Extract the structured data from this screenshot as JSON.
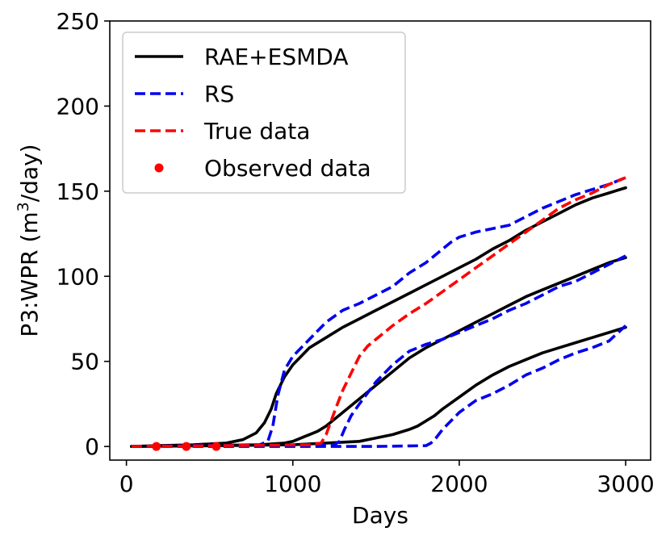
{
  "chart_data": {
    "type": "line",
    "title": "",
    "xlabel": "Days",
    "ylabel": "P3:WPR (m3/day)",
    "ylabel_main": "P3:WPR (m",
    "ylabel_sup": "3",
    "ylabel_tail": "/day)",
    "xlim": [
      -100,
      3150
    ],
    "ylim": [
      -8,
      250
    ],
    "xticks": [
      0,
      1000,
      2000,
      3000
    ],
    "xtick_labels": [
      "0",
      "1000",
      "2000",
      "3000"
    ],
    "yticks": [
      0,
      50,
      100,
      150,
      200,
      250
    ],
    "ytick_labels": [
      "0",
      "50",
      "100",
      "150",
      "200",
      "250"
    ],
    "grid": false,
    "legend_position": "top-left",
    "series": [
      {
        "name": "RAE+ESMDA",
        "legend": true,
        "style": "solid",
        "color": "#000000",
        "x": [
          30,
          200,
          400,
          600,
          700,
          780,
          830,
          870,
          900,
          950,
          1000,
          1050,
          1100,
          1200,
          1300,
          1400,
          1500,
          1600,
          1700,
          1800,
          1900,
          2000,
          2100,
          2200,
          2300,
          2400,
          2500,
          2600,
          2700,
          2800,
          2900,
          3000
        ],
        "y": [
          0,
          0.5,
          1,
          2,
          4,
          8,
          14,
          22,
          31,
          41,
          48,
          53,
          58,
          64,
          70,
          75,
          80,
          85,
          90,
          95,
          100,
          105,
          110,
          116,
          121,
          127,
          132,
          137,
          142,
          146,
          149,
          152
        ]
      },
      {
        "name": "RAE+ESMDA",
        "legend": false,
        "style": "solid",
        "color": "#000000",
        "x": [
          30,
          400,
          800,
          950,
          1000,
          1050,
          1100,
          1150,
          1200,
          1250,
          1300,
          1400,
          1500,
          1600,
          1700,
          1800,
          1900,
          2000,
          2100,
          2200,
          2300,
          2400,
          2500,
          2600,
          2700,
          2800,
          2900,
          3000
        ],
        "y": [
          0,
          0.5,
          1,
          2,
          3,
          5,
          7,
          9,
          12,
          16,
          20,
          28,
          36,
          44,
          52,
          58,
          63,
          68,
          73,
          78,
          83,
          88,
          92,
          96,
          100,
          104,
          108,
          111
        ]
      },
      {
        "name": "RAE+ESMDA",
        "legend": false,
        "style": "solid",
        "color": "#000000",
        "x": [
          30,
          600,
          1000,
          1200,
          1400,
          1500,
          1600,
          1700,
          1750,
          1800,
          1850,
          1900,
          2000,
          2100,
          2200,
          2300,
          2400,
          2500,
          2600,
          2700,
          2800,
          2900,
          3000
        ],
        "y": [
          0,
          0.5,
          1,
          2,
          3,
          5,
          7,
          10,
          12,
          15,
          18,
          22,
          29,
          36,
          42,
          47,
          51,
          55,
          58,
          61,
          64,
          67,
          70
        ]
      },
      {
        "name": "RS",
        "legend": true,
        "style": "dashed",
        "color": "#0000ee",
        "x": [
          30,
          400,
          800,
          850,
          880,
          910,
          950,
          1000,
          1100,
          1200,
          1300,
          1400,
          1500,
          1600,
          1700,
          1800,
          1900,
          1950,
          2000,
          2100,
          2200,
          2300,
          2400,
          2500,
          2600,
          2700,
          2800,
          2900,
          3000
        ],
        "y": [
          0,
          0.5,
          1,
          3,
          12,
          30,
          45,
          53,
          63,
          73,
          80,
          84,
          89,
          94,
          102,
          108,
          116,
          120,
          123,
          126,
          128,
          130,
          135,
          140,
          144,
          148,
          151,
          154,
          158
        ]
      },
      {
        "name": "RS",
        "legend": false,
        "style": "dashed",
        "color": "#0000ee",
        "x": [
          30,
          800,
          1250,
          1280,
          1310,
          1350,
          1400,
          1500,
          1600,
          1700,
          1800,
          1900,
          2000,
          2100,
          2200,
          2300,
          2400,
          2500,
          2600,
          2700,
          2800,
          2900,
          3000
        ],
        "y": [
          0,
          0.5,
          1,
          3,
          10,
          18,
          25,
          38,
          48,
          56,
          60,
          63,
          67,
          71,
          75,
          80,
          84,
          89,
          94,
          97,
          102,
          107,
          112
        ]
      },
      {
        "name": "RS",
        "legend": false,
        "style": "dashed",
        "color": "#0000ee",
        "x": [
          30,
          1000,
          1500,
          1800,
          1830,
          1860,
          1900,
          1950,
          2000,
          2100,
          2200,
          2300,
          2400,
          2500,
          2600,
          2700,
          2800,
          2900,
          3000
        ],
        "y": [
          0,
          0,
          0,
          0.5,
          2,
          5,
          10,
          15,
          20,
          27,
          31,
          36,
          42,
          46,
          51,
          55,
          58,
          62,
          71
        ]
      },
      {
        "name": "True data",
        "legend": true,
        "style": "dashed",
        "color": "#ff0000",
        "x": [
          30,
          600,
          1100,
          1170,
          1200,
          1230,
          1260,
          1300,
          1350,
          1400,
          1450,
          1500,
          1600,
          1700,
          1800,
          1900,
          2000,
          2100,
          2200,
          2300,
          2400,
          2500,
          2600,
          2700,
          2800,
          2900,
          3000
        ],
        "y": [
          0,
          0.5,
          1,
          2,
          7,
          15,
          23,
          33,
          43,
          53,
          59,
          63,
          71,
          78,
          84,
          91,
          98,
          105,
          112,
          119,
          126,
          133,
          140,
          145,
          149,
          154,
          158
        ]
      }
    ],
    "observed": {
      "name": "Observed data",
      "color": "#ff0000",
      "x": [
        180,
        360,
        540
      ],
      "y": [
        0,
        0,
        0
      ]
    },
    "legend_entries": [
      {
        "label": "RAE+ESMDA",
        "kind": "solid",
        "color": "#000000"
      },
      {
        "label": "RS",
        "kind": "dashed",
        "color": "#0000ee"
      },
      {
        "label": "True data",
        "kind": "dashed",
        "color": "#ff0000"
      },
      {
        "label": "Observed data",
        "kind": "marker",
        "color": "#ff0000"
      }
    ]
  }
}
